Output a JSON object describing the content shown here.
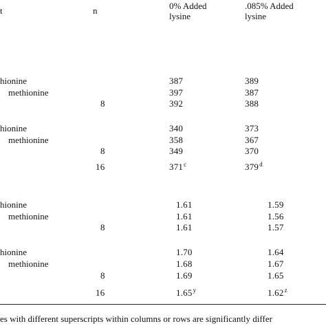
{
  "header": {
    "col0": "t",
    "n": "n",
    "col_a_line1": "0% Added",
    "col_a_line2": "lysine",
    "col_b_line1": ".085% Added",
    "col_b_line2": "lysine"
  },
  "section1": {
    "rows": [
      {
        "label": "hionine",
        "n": "",
        "a": "387",
        "a_sup": "",
        "b": "389",
        "b_sup": ""
      },
      {
        "label": "methionine",
        "n": "",
        "a": "397",
        "a_sup": "",
        "b": "387",
        "b_sup": ""
      },
      {
        "label": "",
        "n": "8",
        "a": "392",
        "a_sup": "",
        "b": "388",
        "b_sup": ""
      }
    ]
  },
  "section2": {
    "rows": [
      {
        "label": "hionine",
        "n": "",
        "a": "340",
        "a_sup": "",
        "b": "373",
        "b_sup": ""
      },
      {
        "label": "methionine",
        "n": "",
        "a": "358",
        "a_sup": "",
        "b": "367",
        "b_sup": ""
      },
      {
        "label": "",
        "n": "8",
        "a": "349",
        "a_sup": "",
        "b": "370",
        "b_sup": ""
      },
      {
        "label": "",
        "n": "16",
        "a": "371",
        "a_sup": "c",
        "b": "379",
        "b_sup": "d"
      }
    ]
  },
  "section3": {
    "rows": [
      {
        "label": "hionine",
        "n": "",
        "a": "1.61",
        "a_sup": "",
        "b": "1.59",
        "b_sup": ""
      },
      {
        "label": "methionine",
        "n": "",
        "a": "1.61",
        "a_sup": "",
        "b": "1.56",
        "b_sup": ""
      },
      {
        "label": "",
        "n": "8",
        "a": "1.61",
        "a_sup": "",
        "b": "1.57",
        "b_sup": ""
      }
    ]
  },
  "section4": {
    "rows": [
      {
        "label": "hionine",
        "n": "",
        "a": "1.70",
        "a_sup": "",
        "b": "1.64",
        "b_sup": ""
      },
      {
        "label": "methionine",
        "n": "",
        "a": "1.68",
        "a_sup": "",
        "b": "1.67",
        "b_sup": ""
      },
      {
        "label": "",
        "n": "8",
        "a": "1.69",
        "a_sup": "",
        "b": "1.65",
        "b_sup": ""
      },
      {
        "label": "",
        "n": "16",
        "a": "1.65",
        "a_sup": "y",
        "b": "1.62",
        "b_sup": "z"
      }
    ]
  },
  "footnote": "es with different superscripts within columns or rows are significantly differ"
}
